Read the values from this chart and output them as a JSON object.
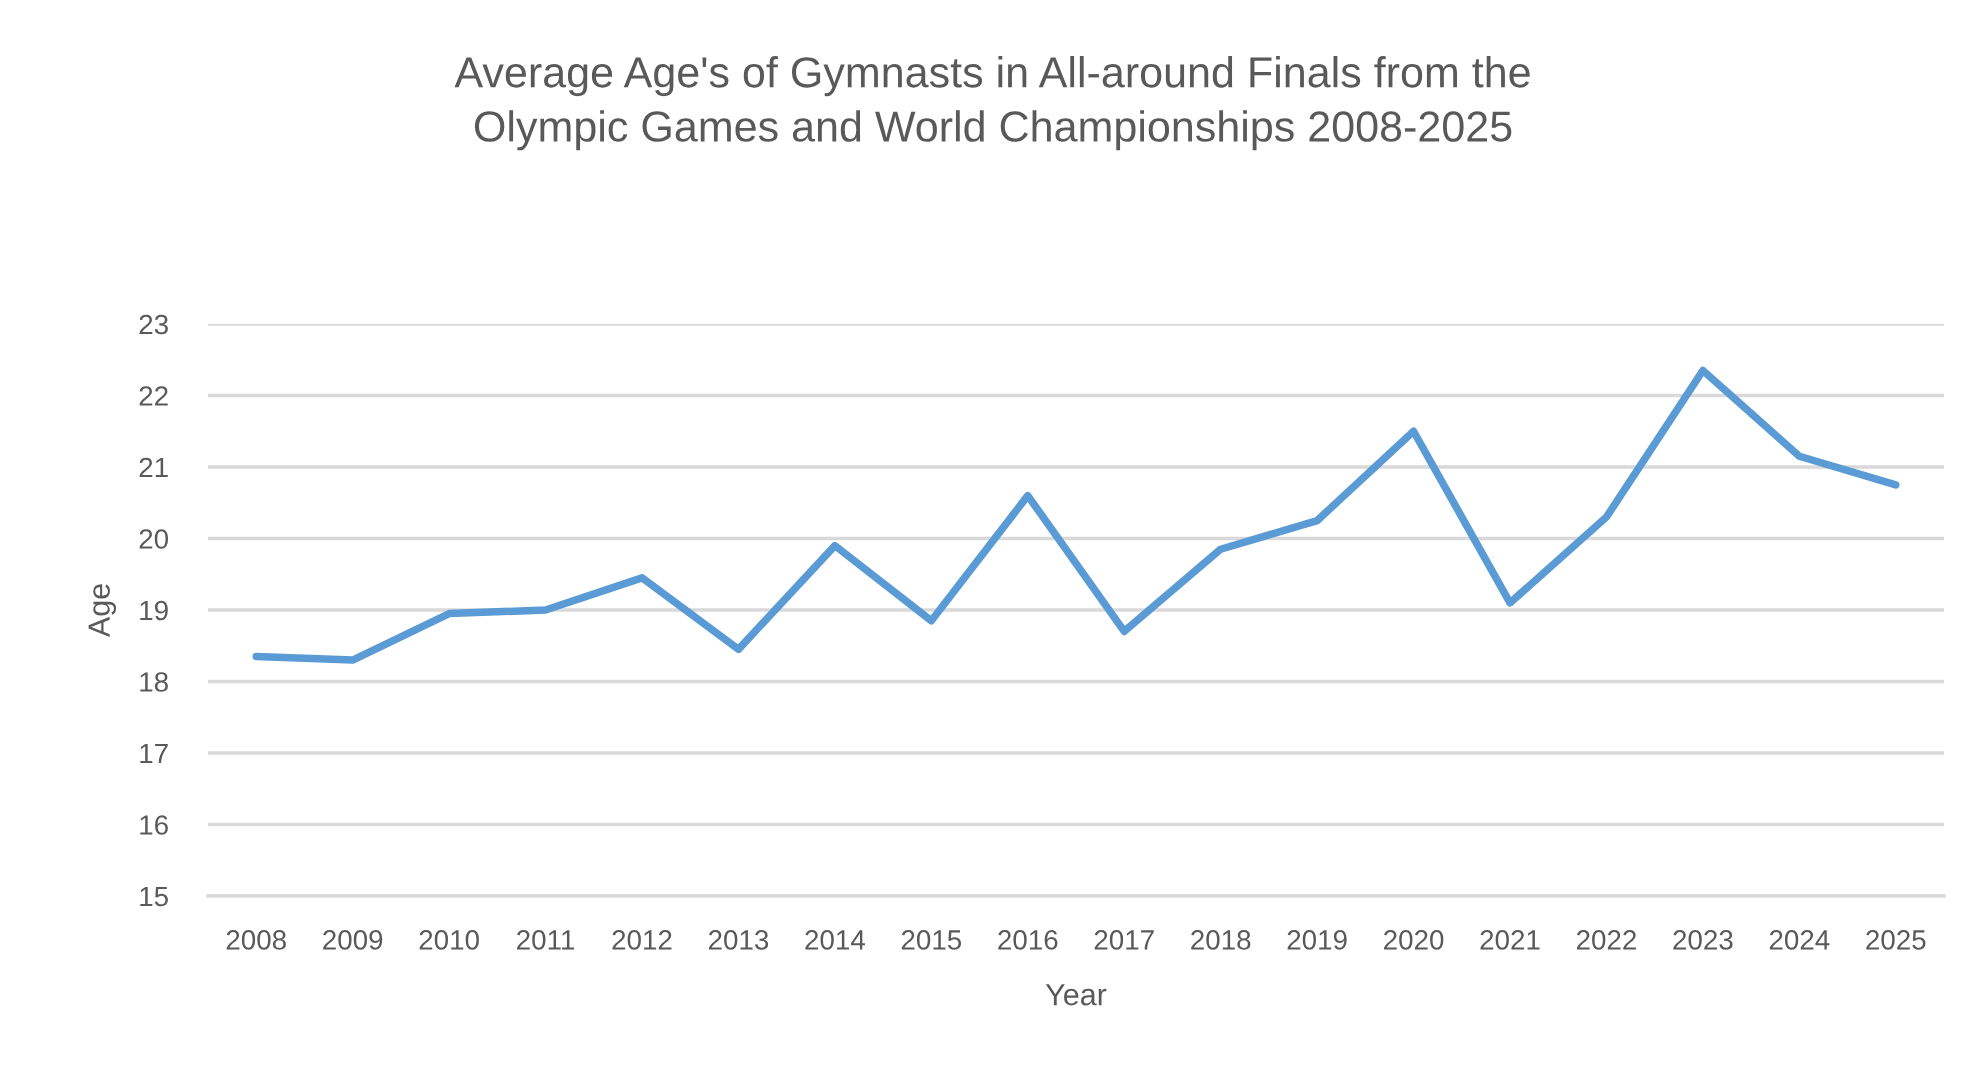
{
  "chart_data": {
    "type": "line",
    "title": "Average Age's of Gymnasts in All-around Finals from the\nOlympic Games and World Championships 2008-2025",
    "xlabel": "Year",
    "ylabel": "Age",
    "categories": [
      "2008",
      "2009",
      "2010",
      "2011",
      "2012",
      "2013",
      "2014",
      "2015",
      "2016",
      "2017",
      "2018",
      "2019",
      "2020",
      "2021",
      "2022",
      "2023",
      "2024",
      "2025"
    ],
    "series": [
      {
        "color": "#5b9bd5",
        "values": [
          18.35,
          18.3,
          18.95,
          19.0,
          19.45,
          18.45,
          19.9,
          18.85,
          20.6,
          18.7,
          19.85,
          20.25,
          21.5,
          19.1,
          20.3,
          22.35,
          21.15,
          20.75
        ]
      }
    ],
    "ylim": [
      15,
      23
    ],
    "yticks": [
      15,
      16,
      17,
      18,
      19,
      20,
      21,
      22,
      23
    ],
    "grid": "y",
    "legend": false,
    "marker": "none",
    "line_style": "solid"
  }
}
